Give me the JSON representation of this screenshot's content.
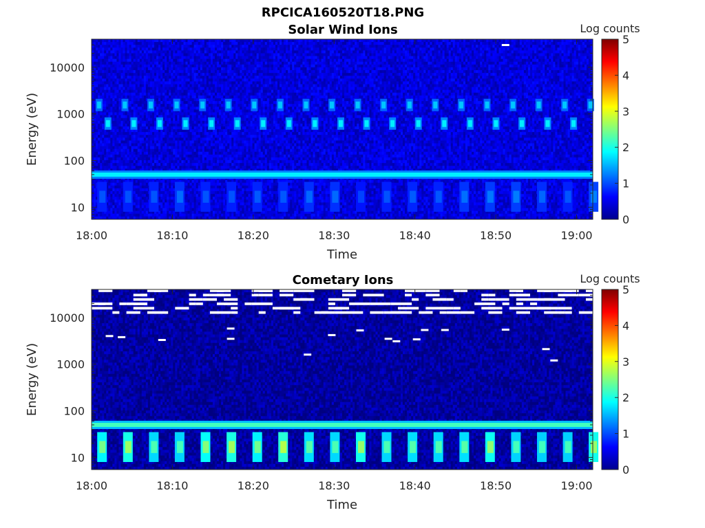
{
  "figure": {
    "title": "RPCICA160520T18.PNG"
  },
  "chart_data": [
    {
      "type": "heatmap",
      "title": "Solar Wind Ions",
      "xlabel": "Time",
      "ylabel": "Energy (eV)",
      "y_scale": "log",
      "x_range": [
        "18:00",
        "19:02"
      ],
      "y_range_eV": [
        5.5,
        40000
      ],
      "x_ticks": [
        "18:00",
        "18:10",
        "18:20",
        "18:30",
        "18:40",
        "18:50",
        "19:00"
      ],
      "y_ticks": [
        "10",
        "100",
        "1000",
        "10000"
      ],
      "colorbar": {
        "label": "Log counts",
        "min": 0,
        "max": 5,
        "ticks": [
          "0",
          "1",
          "2",
          "3",
          "4",
          "5"
        ],
        "colormap": "jet"
      },
      "background_log_counts": 0.45,
      "sweep_period_min": 3.2,
      "features": [
        {
          "name": "Low-energy band",
          "energy_eV": 50,
          "log_counts": 1.8
        },
        {
          "name": "Low-energy ions",
          "energy_range_eV": [
            8,
            35
          ],
          "log_counts": 1.1,
          "pulsed": true
        },
        {
          "name": "Upper blobs",
          "energy_eV": 1500,
          "log_counts": 1.6,
          "pulsed": true
        },
        {
          "name": "Lower blobs",
          "energy_eV": 600,
          "log_counts": 1.8,
          "pulsed": true
        }
      ],
      "cells": [
        {
          "t": "18:51:00",
          "energy_eV": 30000,
          "log_counts": "no data"
        }
      ]
    },
    {
      "type": "heatmap",
      "title": "Cometary Ions",
      "xlabel": "Time",
      "ylabel": "Energy (eV)",
      "y_scale": "log",
      "x_range": [
        "18:00",
        "19:02"
      ],
      "y_range_eV": [
        5.5,
        40000
      ],
      "x_ticks": [
        "18:00",
        "18:10",
        "18:20",
        "18:30",
        "18:40",
        "18:50",
        "19:00"
      ],
      "y_ticks": [
        "10",
        "100",
        "1000",
        "10000"
      ],
      "colorbar": {
        "label": "Log counts",
        "min": 0,
        "max": 5,
        "ticks": [
          "0",
          "1",
          "2",
          "3",
          "4",
          "5"
        ],
        "colormap": "jet"
      },
      "background_log_counts": 0.15,
      "sweep_period_min": 3.2,
      "features": [
        {
          "name": "Low-energy band",
          "energy_eV": 50,
          "log_counts": 2.2
        },
        {
          "name": "Low-energy ions",
          "energy_range_eV": [
            8,
            35
          ],
          "log_counts": 2.4,
          "pulsed": true
        },
        {
          "name": "No-data gaps",
          "energy_range_eV": [
            11000,
            40000
          ],
          "log_counts": "no data"
        }
      ],
      "cells": [
        {
          "t": "18:02:00",
          "energy_eV": 4000,
          "log_counts": "no data"
        },
        {
          "t": "18:03:30",
          "energy_eV": 3800,
          "log_counts": "no data"
        },
        {
          "t": "18:08:30",
          "energy_eV": 3300,
          "log_counts": "no data"
        },
        {
          "t": "18:17:00",
          "energy_eV": 5800,
          "log_counts": "no data"
        },
        {
          "t": "18:17:00",
          "energy_eV": 3500,
          "log_counts": "no data"
        },
        {
          "t": "18:26:30",
          "energy_eV": 1600,
          "log_counts": "no data"
        },
        {
          "t": "18:29:30",
          "energy_eV": 4200,
          "log_counts": "no data"
        },
        {
          "t": "18:33:00",
          "energy_eV": 5300,
          "log_counts": "no data"
        },
        {
          "t": "18:36:30",
          "energy_eV": 3500,
          "log_counts": "no data"
        },
        {
          "t": "18:37:30",
          "energy_eV": 3100,
          "log_counts": "no data"
        },
        {
          "t": "18:40:00",
          "energy_eV": 3400,
          "log_counts": "no data"
        },
        {
          "t": "18:41:00",
          "energy_eV": 5400,
          "log_counts": "no data"
        },
        {
          "t": "18:43:30",
          "energy_eV": 5400,
          "log_counts": "no data"
        },
        {
          "t": "18:51:00",
          "energy_eV": 5500,
          "log_counts": "no data"
        },
        {
          "t": "18:56:00",
          "energy_eV": 2100,
          "log_counts": "no data"
        },
        {
          "t": "18:57:00",
          "energy_eV": 1200,
          "log_counts": "no data"
        }
      ]
    }
  ]
}
